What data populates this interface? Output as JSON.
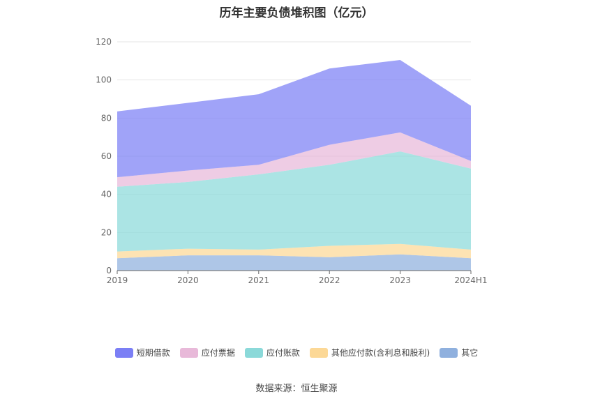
{
  "chart_data": {
    "type": "area",
    "stacked": true,
    "title": "历年主要负债堆积图（亿元）",
    "categories": [
      "2019",
      "2020",
      "2021",
      "2022",
      "2023",
      "2024H1"
    ],
    "ylim": [
      0,
      120
    ],
    "yticks": [
      0,
      20,
      40,
      60,
      80,
      100,
      120
    ],
    "grid": true,
    "legend_position": "bottom",
    "series": [
      {
        "name": "其它",
        "color": "#8fb0de",
        "values": [
          6.5,
          8.0,
          8.0,
          7.0,
          8.5,
          6.5
        ]
      },
      {
        "name": "其他应付款(含利息和股利)",
        "color": "#fcd896",
        "values": [
          3.5,
          3.5,
          3.0,
          6.0,
          5.5,
          4.5
        ]
      },
      {
        "name": "应付账款",
        "color": "#8bd9d9",
        "values": [
          34.0,
          35.0,
          39.5,
          42.5,
          48.5,
          42.5
        ]
      },
      {
        "name": "应付票据",
        "color": "#e8b9d9",
        "values": [
          5.0,
          6.0,
          5.0,
          10.5,
          10.0,
          4.0
        ]
      },
      {
        "name": "短期借款",
        "color": "#7b7ff5",
        "values": [
          34.5,
          35.5,
          37.0,
          40.0,
          38.0,
          29.0
        ]
      }
    ],
    "legend_order": [
      "短期借款",
      "应付票据",
      "应付账款",
      "其他应付款(含利息和股利)",
      "其它"
    ],
    "source": "数据来源：恒生聚源"
  }
}
